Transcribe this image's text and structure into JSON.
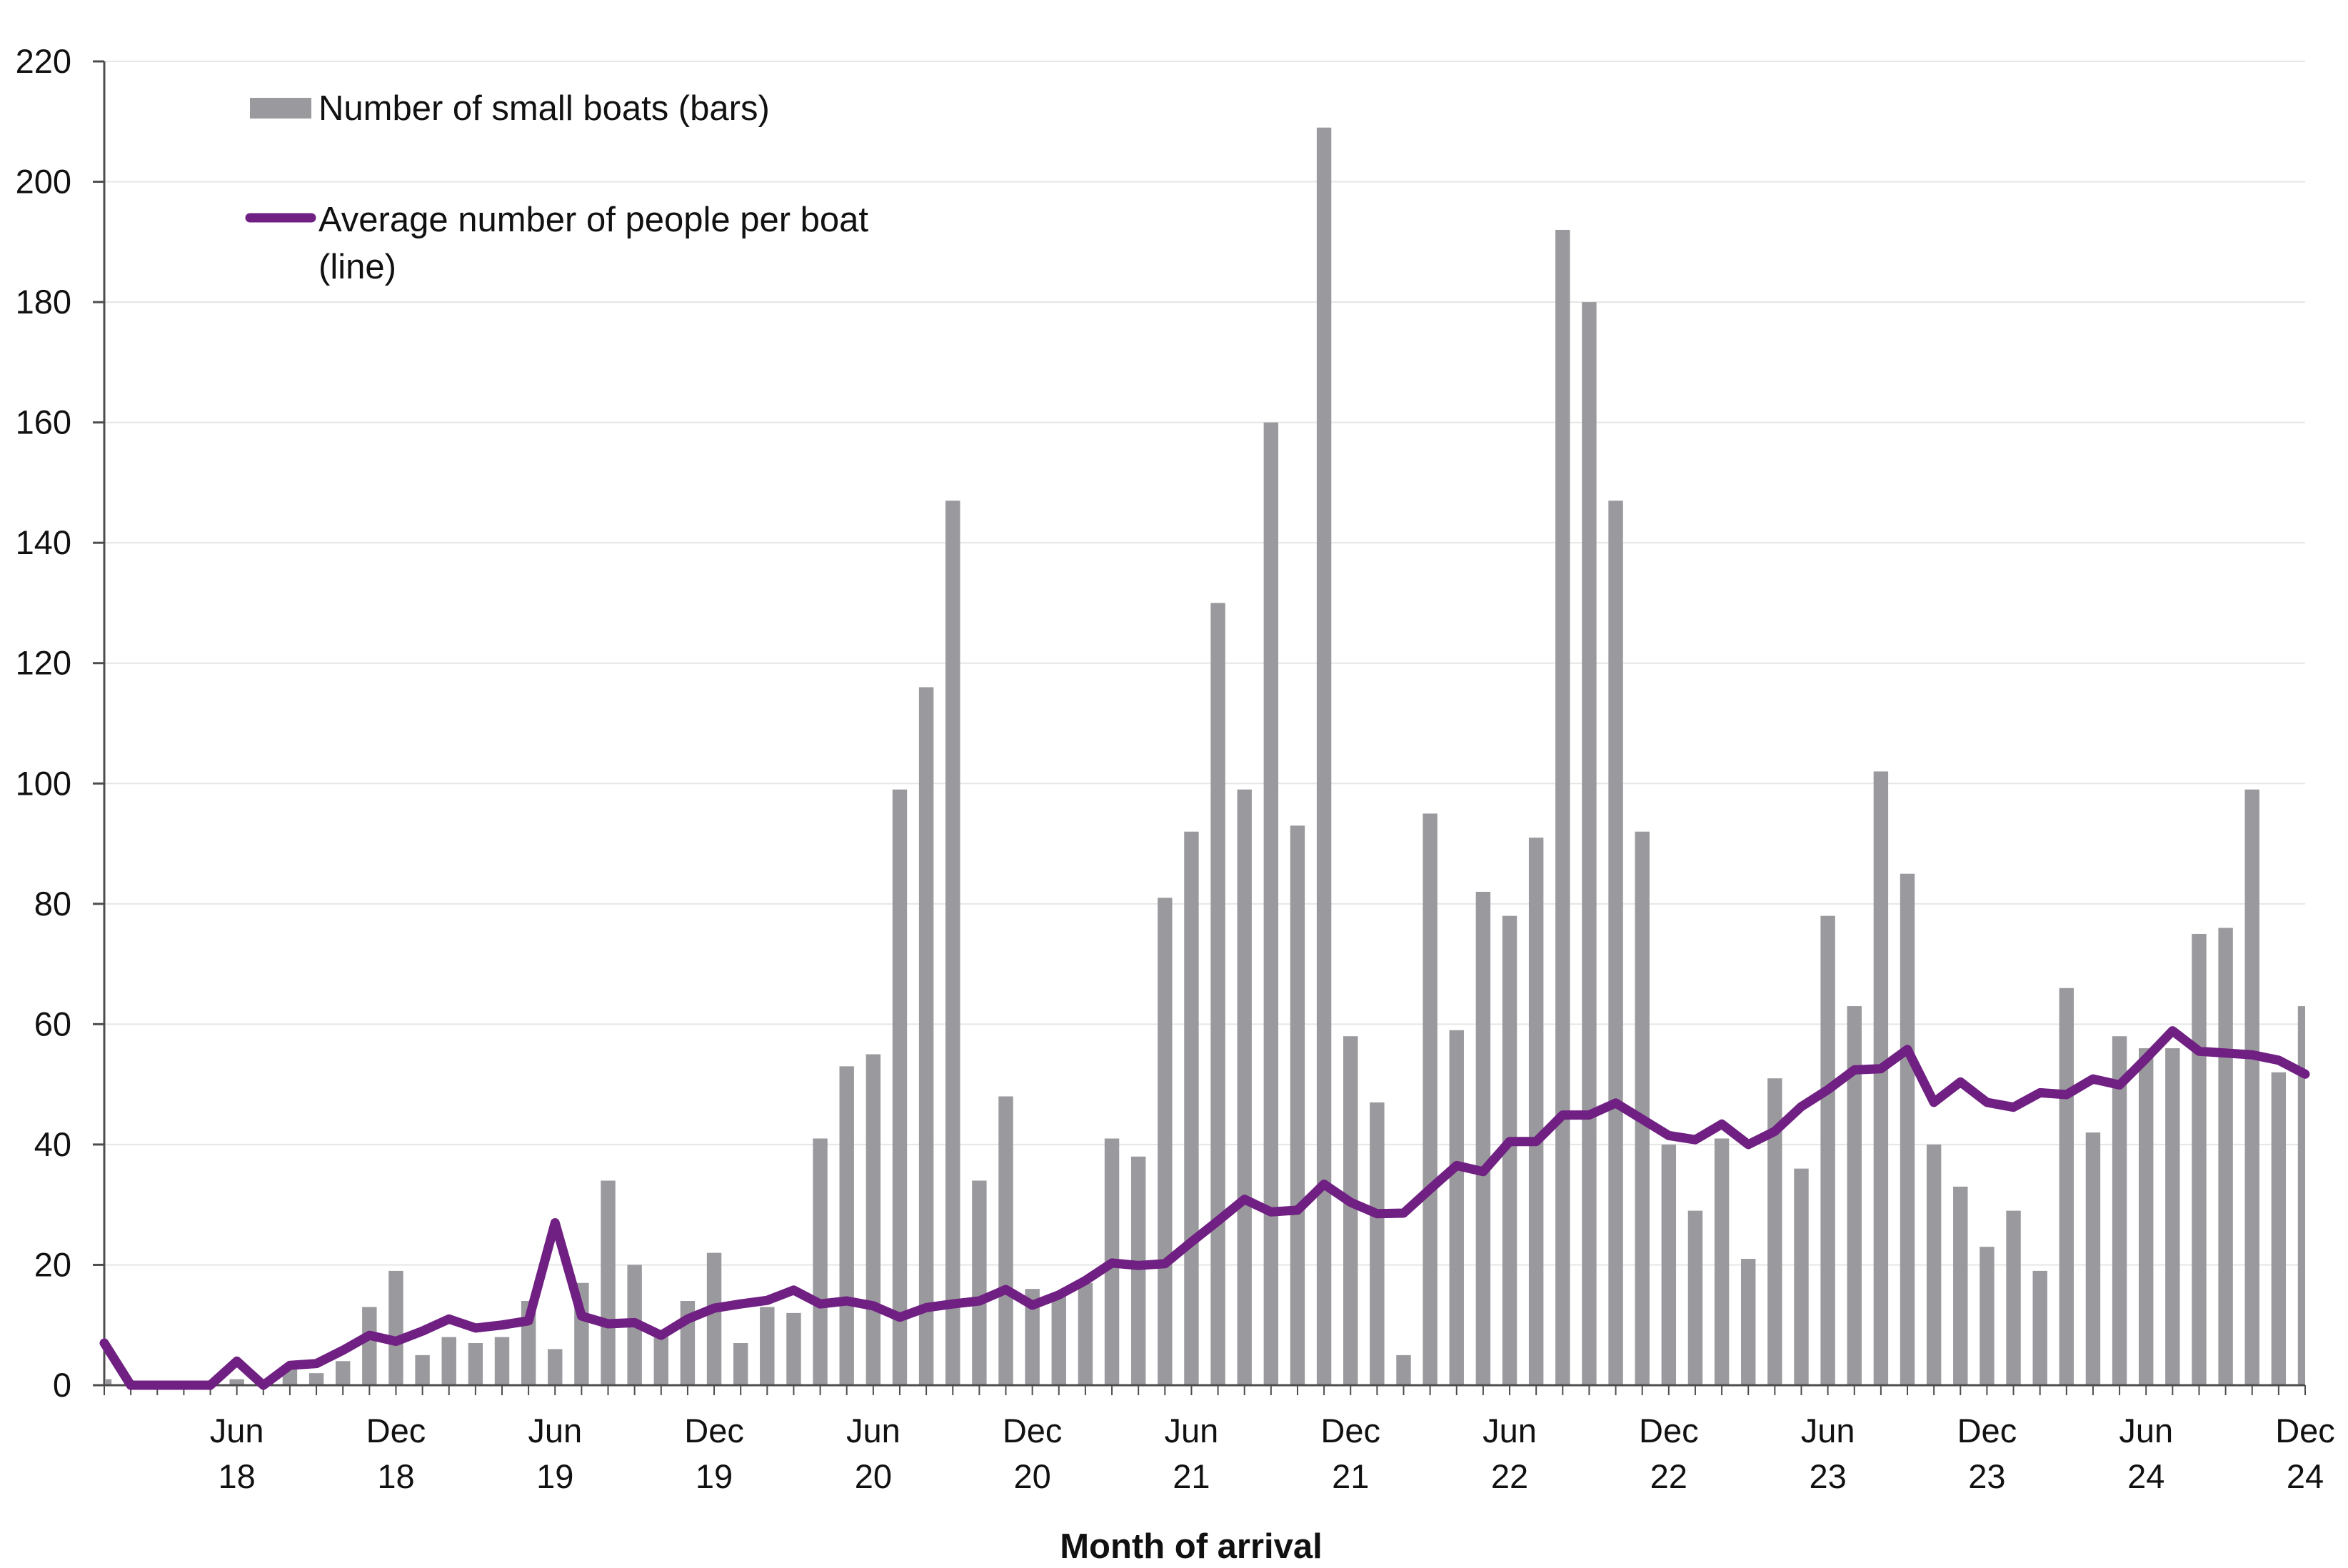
{
  "chart_data": {
    "type": "bar+line",
    "title": "",
    "xlabel": "Month of arrival",
    "ylabel": "",
    "ylim": [
      0,
      220
    ],
    "yticks": [
      0,
      20,
      40,
      60,
      80,
      100,
      120,
      140,
      160,
      180,
      200,
      220
    ],
    "grid": "horizontal",
    "legend_position": "top-left",
    "legend": {
      "bars_label": "Number of small boats (bars)",
      "line_label_line1": "Average number of people per boat",
      "line_label_line2": "(line)"
    },
    "x_ticks": [
      {
        "month": "2018-06",
        "line1": "Jun",
        "line2": "18"
      },
      {
        "month": "2018-12",
        "line1": "Dec",
        "line2": "18"
      },
      {
        "month": "2019-06",
        "line1": "Jun",
        "line2": "19"
      },
      {
        "month": "2019-12",
        "line1": "Dec",
        "line2": "19"
      },
      {
        "month": "2020-06",
        "line1": "Jun",
        "line2": "20"
      },
      {
        "month": "2020-12",
        "line1": "Dec",
        "line2": "20"
      },
      {
        "month": "2021-06",
        "line1": "Jun",
        "line2": "21"
      },
      {
        "month": "2021-12",
        "line1": "Dec",
        "line2": "21"
      },
      {
        "month": "2022-06",
        "line1": "Jun",
        "line2": "22"
      },
      {
        "month": "2022-12",
        "line1": "Dec",
        "line2": "22"
      },
      {
        "month": "2023-06",
        "line1": "Jun",
        "line2": "23"
      },
      {
        "month": "2023-12",
        "line1": "Dec",
        "line2": "23"
      },
      {
        "month": "2024-06",
        "line1": "Jun",
        "line2": "24"
      },
      {
        "month": "2024-12",
        "line1": "Dec",
        "line2": "24"
      }
    ],
    "months": [
      "2018-01",
      "2018-02",
      "2018-03",
      "2018-04",
      "2018-05",
      "2018-06",
      "2018-07",
      "2018-08",
      "2018-09",
      "2018-10",
      "2018-11",
      "2018-12",
      "2019-01",
      "2019-02",
      "2019-03",
      "2019-04",
      "2019-05",
      "2019-06",
      "2019-07",
      "2019-08",
      "2019-09",
      "2019-10",
      "2019-11",
      "2019-12",
      "2020-01",
      "2020-02",
      "2020-03",
      "2020-04",
      "2020-05",
      "2020-06",
      "2020-07",
      "2020-08",
      "2020-09",
      "2020-10",
      "2020-11",
      "2020-12",
      "2021-01",
      "2021-02",
      "2021-03",
      "2021-04",
      "2021-05",
      "2021-06",
      "2021-07",
      "2021-08",
      "2021-09",
      "2021-10",
      "2021-11",
      "2021-12",
      "2022-01",
      "2022-02",
      "2022-03",
      "2022-04",
      "2022-05",
      "2022-06",
      "2022-07",
      "2022-08",
      "2022-09",
      "2022-10",
      "2022-11",
      "2022-12",
      "2023-01",
      "2023-02",
      "2023-03",
      "2023-04",
      "2023-05",
      "2023-06",
      "2023-07",
      "2023-08",
      "2023-09",
      "2023-10",
      "2023-11",
      "2023-12",
      "2024-01",
      "2024-02",
      "2024-03",
      "2024-04",
      "2024-05",
      "2024-06",
      "2024-07",
      "2024-08",
      "2024-09",
      "2024-10",
      "2024-11",
      "2024-12"
    ],
    "series": [
      {
        "type": "bar",
        "color": "#9a9a9e",
        "values": [
          1,
          0,
          0,
          0,
          0,
          1,
          0,
          3,
          2,
          4,
          13,
          19,
          5,
          8,
          7,
          8,
          14,
          6,
          17,
          34,
          20,
          8,
          14,
          22,
          7,
          13,
          12,
          41,
          53,
          55,
          99,
          116,
          147,
          34,
          48,
          16,
          15,
          17,
          41,
          38,
          81,
          92,
          130,
          99,
          160,
          93,
          209,
          58,
          47,
          5,
          95,
          59,
          82,
          78,
          91,
          192,
          180,
          147,
          92,
          40,
          29,
          41,
          21,
          51,
          36,
          78,
          63,
          102,
          85,
          40,
          33,
          23,
          29,
          19,
          66,
          42,
          58,
          56,
          56,
          75,
          76,
          99,
          52,
          63
        ]
      },
      {
        "type": "line",
        "color": "#702082",
        "values": [
          7,
          0,
          0,
          0,
          0,
          4,
          0,
          3.3,
          3.6,
          5.8,
          8.3,
          7.3,
          9,
          11,
          9.5,
          10,
          10.7,
          27,
          11.5,
          10.2,
          10.4,
          8.3,
          11,
          12.8,
          13.5,
          14.1,
          15.8,
          13.5,
          14,
          13.2,
          11.3,
          12.9,
          13.5,
          14,
          15.9,
          13.3,
          15,
          17.4,
          20.3,
          19.9,
          20.2,
          23.8,
          27.3,
          30.9,
          28.8,
          29.1,
          33.4,
          30.4,
          28.5,
          28.6,
          32.6,
          36.5,
          35.5,
          40.5,
          40.5,
          44.9,
          44.9,
          46.9,
          44.2,
          41.5,
          40.8,
          43.4,
          40,
          42.2,
          46.3,
          49.1,
          52.4,
          52.6,
          55.8,
          47,
          50.4,
          47,
          46.2,
          48.6,
          48.3,
          50.9,
          49.9,
          54.3,
          58.9,
          55.5,
          55.2,
          54.9,
          54,
          51.7
        ]
      }
    ]
  }
}
